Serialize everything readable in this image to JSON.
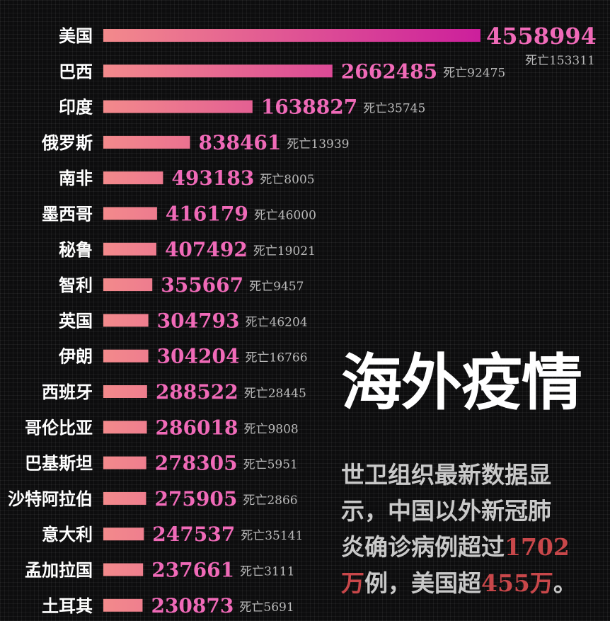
{
  "chart_data": {
    "type": "bar",
    "orientation": "horizontal",
    "categories": [
      "美国",
      "巴西",
      "印度",
      "俄罗斯",
      "南非",
      "墨西哥",
      "秘鲁",
      "智利",
      "英国",
      "伊朗",
      "西班牙",
      "哥伦比亚",
      "巴基斯坦",
      "沙特阿拉伯",
      "意大利",
      "孟加拉国",
      "土耳其"
    ],
    "series": [
      {
        "values": [
          4558994,
          2662485,
          1638827,
          838461,
          493183,
          416179,
          407492,
          355667,
          304793,
          304204,
          288522,
          286018,
          278305,
          275905,
          247537,
          237661,
          230873
        ]
      }
    ],
    "deaths_prefix": "死亡",
    "deaths": [
      153311,
      92475,
      35745,
      13939,
      8005,
      46000,
      19021,
      9457,
      46204,
      16766,
      28445,
      9808,
      5951,
      2866,
      35141,
      3111,
      5691
    ],
    "colors": {
      "bar_start": "#f38a8c",
      "bar_end": "#cc1f9c",
      "value": "#f06ab8",
      "death": "#b9b9b9"
    }
  },
  "headline": "海外疫情",
  "note": {
    "line1": "世卫组织最新数据显",
    "line2": "示，中国以外新冠肺",
    "line3_pre": "炎确诊病例超过",
    "line3_hl": "1702",
    "line4_hl": "万",
    "line4_mid": "例，美国超",
    "line4_hl2": "455万",
    "line4_post": "。"
  }
}
